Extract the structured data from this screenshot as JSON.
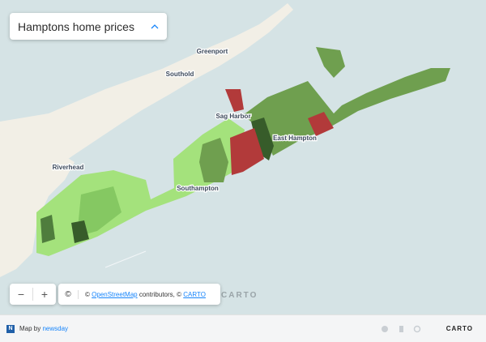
{
  "title": "Hamptons home prices",
  "places": [
    "Greenport",
    "Southold",
    "Sag Harbor",
    "East Hampton",
    "Riverhead",
    "Southampton"
  ],
  "controls": {
    "zoom_out": "−",
    "zoom_in": "+",
    "info": "©"
  },
  "attribution": {
    "prefix": "©",
    "osm": "OpenStreetMap",
    "middle": "contributors, ©",
    "carto": "CARTO"
  },
  "watermark": "CARTO",
  "footer": {
    "badge": "N",
    "byline": "Map by",
    "source": "newsday",
    "logo": "CARTO"
  }
}
